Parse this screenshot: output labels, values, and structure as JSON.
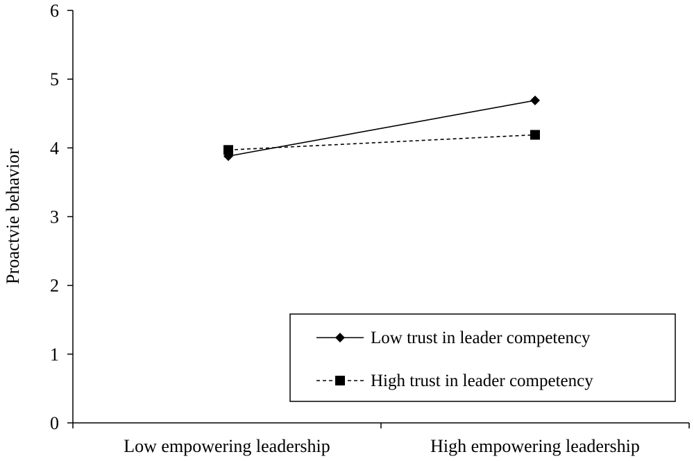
{
  "chart_data": {
    "type": "line",
    "title": "",
    "xlabel": "",
    "ylabel": "Proactvie behavior",
    "categories": [
      "Low empowering leadership",
      "High empowering leadership"
    ],
    "ylim": [
      0,
      6
    ],
    "yticks": [
      "0",
      "1",
      "2",
      "3",
      "4",
      "5",
      "6"
    ],
    "grid": false,
    "legend_position": "bottom-right",
    "series": [
      {
        "name": "Low trust in leader competency",
        "values": [
          3.88,
          4.69
        ],
        "line_style": "solid",
        "marker": "diamond",
        "color": "#000000"
      },
      {
        "name": "High trust in leader competency",
        "values": [
          3.97,
          4.19
        ],
        "line_style": "dashed",
        "marker": "square",
        "color": "#000000"
      }
    ]
  }
}
